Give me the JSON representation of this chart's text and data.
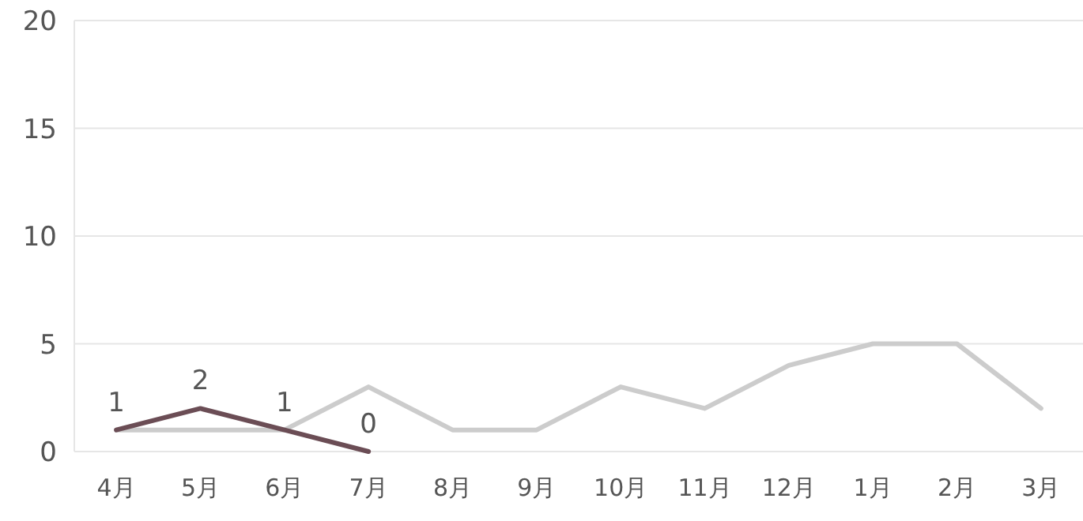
{
  "chart_data": {
    "type": "line",
    "categories": [
      "4月",
      "5月",
      "6月",
      "7月",
      "8月",
      "9月",
      "10月",
      "11月",
      "12月",
      "1月",
      "2月",
      "3月"
    ],
    "series": [
      {
        "color": "#cccccc",
        "values": [
          1,
          1,
          1,
          3,
          1,
          1,
          3,
          2,
          4,
          5,
          5,
          2
        ]
      },
      {
        "color": "#6b4d55",
        "values": [
          1,
          2,
          1,
          0,
          null,
          null,
          null,
          null,
          null,
          null,
          null,
          null
        ],
        "value_labels": [
          "1",
          "2",
          "1",
          "0",
          null,
          null,
          null,
          null,
          null,
          null,
          null,
          null
        ]
      }
    ],
    "ylim": [
      0,
      20
    ],
    "yticks": [
      0,
      5,
      10,
      15,
      20
    ],
    "grid": "y",
    "marker": "none",
    "line_style": "solid"
  }
}
